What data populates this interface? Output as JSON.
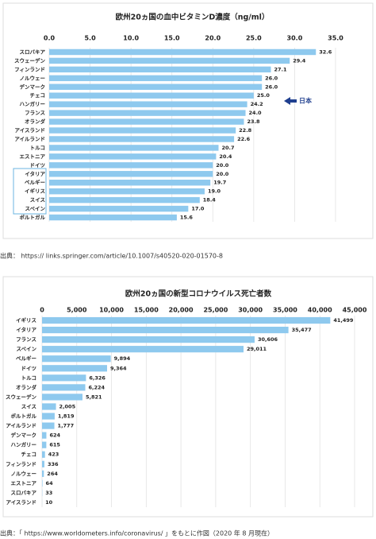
{
  "chart_data": [
    {
      "type": "bar",
      "orientation": "horizontal",
      "title": "欧州20ヵ国の血中ビタミンD濃度（ng/ml）",
      "categories": [
        "スロバキア",
        "スウェーデン",
        "フィンランド",
        "ノルウェー",
        "デンマーク",
        "チェコ",
        "ハンガリー",
        "フランス",
        "オランダ",
        "アイスランド",
        "アイルランド",
        "トルコ",
        "エストニア",
        "ドイツ",
        "イタリア",
        "ベルギー",
        "イギリス",
        "スイス",
        "スペイン",
        "ポルトガル"
      ],
      "values": [
        32.6,
        29.4,
        27.1,
        26.0,
        26.0,
        25.0,
        24.2,
        24.0,
        23.8,
        22.8,
        22.6,
        20.7,
        20.4,
        20.0,
        20.0,
        19.7,
        19.0,
        18.4,
        17.0,
        15.6
      ],
      "value_labels": [
        "32.6",
        "29.4",
        "27.1",
        "26.0",
        "26.0",
        "25.0",
        "24.2",
        "24.0",
        "23.8",
        "22.8",
        "22.6",
        "20.7",
        "20.4",
        "20.0",
        "20.0",
        "19.7",
        "19.0",
        "18.4",
        "17.0",
        "15.6"
      ],
      "color": "#8ec9ee",
      "xlim": [
        0,
        35
      ],
      "xticks": [
        {
          "value": 0,
          "label": "0.0"
        },
        {
          "value": 5,
          "label": "5.0"
        },
        {
          "value": 10,
          "label": "10.0"
        },
        {
          "value": 15,
          "label": "15.0"
        },
        {
          "value": 20,
          "label": "20.0"
        },
        {
          "value": 25,
          "label": "25.0"
        },
        {
          "value": 30,
          "label": "30.0"
        },
        {
          "value": 35,
          "label": "35.0"
        }
      ],
      "grid": true,
      "annotation": "日本",
      "source": "出典： https:// links.springer.com/article/10.1007/s40520-020-01570-8"
    },
    {
      "type": "bar",
      "orientation": "horizontal",
      "title": "欧州20ヵ国の新型コロナウイルス死亡者数",
      "categories": [
        "イギリス",
        "イタリア",
        "フランス",
        "スペイン",
        "ベルギー",
        "ドイツ",
        "トルコ",
        "オランダ",
        "スウェーデン",
        "スイス",
        "ポルトガル",
        "アイルランド",
        "デンマーク",
        "ハンガリー",
        "チェコ",
        "フィンランド",
        "ノルウェー",
        "エストニア",
        "スロバキア",
        "アイスランド"
      ],
      "values": [
        41499,
        35477,
        30606,
        29011,
        9894,
        9364,
        6326,
        6224,
        5821,
        2005,
        1819,
        1777,
        624,
        615,
        423,
        336,
        264,
        64,
        33,
        10
      ],
      "value_labels": [
        "41,499",
        "35,477",
        "30,606",
        "29,011",
        "9,894",
        "9,364",
        "6,326",
        "6,224",
        "5,821",
        "2,005",
        "1,819",
        "1,777",
        "624",
        "615",
        "423",
        "336",
        "264",
        "64",
        "33",
        "10"
      ],
      "color": "#8ec9ee",
      "xlim": [
        0,
        45000
      ],
      "xticks": [
        0,
        {
          "value": 5000,
          "label": "5,000"
        },
        {
          "value": 10000,
          "label": "10,000"
        },
        {
          "value": 15000,
          "label": "15,000"
        },
        {
          "value": 20000,
          "label": "20,000"
        },
        {
          "value": 25000,
          "label": "25,000"
        },
        {
          "value": 30000,
          "label": "30,000"
        },
        {
          "value": 35000,
          "label": "35,000"
        },
        {
          "value": 40000,
          "label": "40,000"
        },
        {
          "value": 45000,
          "label": "45,000"
        }
      ],
      "grid": true,
      "source": "出典：「 https://www.worldometers.info/coronavirus/ 」をもとに作図（2020 年 8 月現在）"
    }
  ]
}
